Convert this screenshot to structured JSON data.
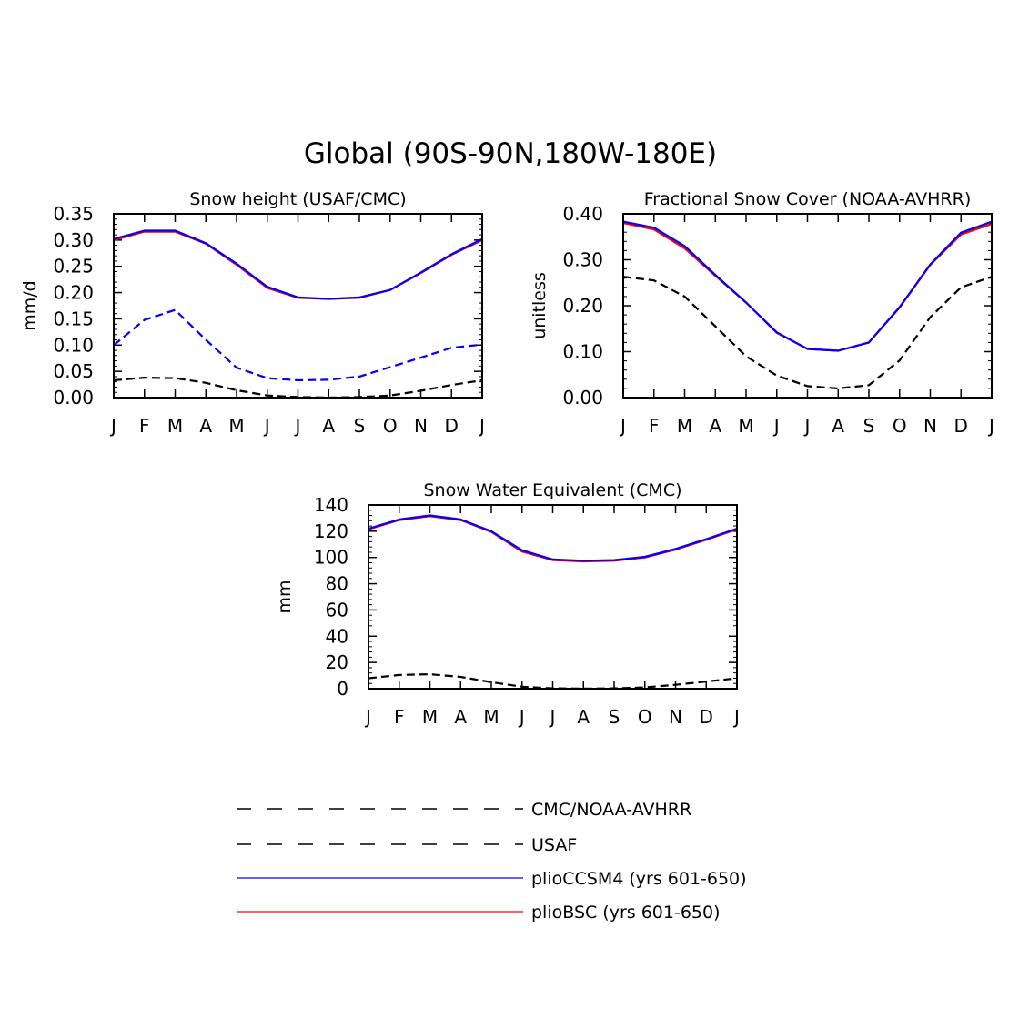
{
  "figure": {
    "title": "Global (90S-90N,180W-180E)"
  },
  "legend": {
    "entries": [
      {
        "label": "CMC/NOAA-AVHRR",
        "color": "#000000",
        "style": "dashed-long"
      },
      {
        "label": "USAF",
        "color": "#000000",
        "style": "dashed-dark"
      },
      {
        "label": "plioCCSM4 (yrs 601-650)",
        "color": "#0000ff",
        "style": "solid"
      },
      {
        "label": "plioBSC (yrs 601-650)",
        "color": "#ff0000",
        "style": "solid"
      }
    ]
  },
  "chart_data": [
    {
      "type": "line",
      "title": "Snow height (USAF/CMC)",
      "xlabel": "",
      "ylabel": "mm/d",
      "categories": [
        "J",
        "F",
        "M",
        "A",
        "M",
        "J",
        "J",
        "A",
        "S",
        "O",
        "N",
        "D",
        "J"
      ],
      "ylim": [
        0,
        0.35
      ],
      "yticks": [
        "0.00",
        "0.05",
        "0.10",
        "0.15",
        "0.20",
        "0.25",
        "0.30",
        "0.35"
      ],
      "grid": false,
      "series": [
        {
          "name": "plioBSC (yrs 601-650)",
          "color": "#ff0000",
          "dash": "solid",
          "values": [
            0.3,
            0.316,
            0.316,
            0.293,
            0.253,
            0.209,
            0.19,
            0.188,
            0.19,
            0.205,
            0.237,
            0.272,
            0.3
          ]
        },
        {
          "name": "plioCCSM4 (yrs 601-650)",
          "color": "#0000ff",
          "dash": "solid",
          "values": [
            0.302,
            0.318,
            0.318,
            0.294,
            0.255,
            0.211,
            0.191,
            0.188,
            0.191,
            0.205,
            0.238,
            0.273,
            0.302
          ]
        },
        {
          "name": "USAF",
          "color": "#0000ff",
          "dash": "dashed",
          "values": [
            0.1,
            0.148,
            0.167,
            0.11,
            0.057,
            0.037,
            0.033,
            0.034,
            0.04,
            0.058,
            0.076,
            0.095,
            0.101
          ]
        },
        {
          "name": "CMC/NOAA-AVHRR",
          "color": "#000000",
          "dash": "dashed",
          "values": [
            0.033,
            0.038,
            0.037,
            0.028,
            0.014,
            0.004,
            0.001,
            0.0,
            0.001,
            0.004,
            0.013,
            0.024,
            0.033
          ]
        }
      ]
    },
    {
      "type": "line",
      "title": "Fractional Snow Cover (NOAA-AVHRR)",
      "xlabel": "",
      "ylabel": "unitless",
      "categories": [
        "J",
        "F",
        "M",
        "A",
        "M",
        "J",
        "J",
        "A",
        "S",
        "O",
        "N",
        "D",
        "J"
      ],
      "ylim": [
        0,
        0.4
      ],
      "yticks": [
        "0.00",
        "0.10",
        "0.20",
        "0.30",
        "0.40"
      ],
      "grid": false,
      "series": [
        {
          "name": "plioBSC (yrs 601-650)",
          "color": "#ff0000",
          "dash": "solid",
          "values": [
            0.38,
            0.366,
            0.325,
            0.265,
            0.207,
            0.141,
            0.106,
            0.102,
            0.12,
            0.196,
            0.289,
            0.355,
            0.378
          ]
        },
        {
          "name": "plioCCSM4 (yrs 601-650)",
          "color": "#0000ff",
          "dash": "solid",
          "values": [
            0.383,
            0.37,
            0.33,
            0.267,
            0.207,
            0.142,
            0.106,
            0.102,
            0.12,
            0.197,
            0.29,
            0.359,
            0.383
          ]
        },
        {
          "name": "CMC/NOAA-AVHRR",
          "color": "#000000",
          "dash": "dashed",
          "values": [
            0.263,
            0.255,
            0.22,
            0.155,
            0.09,
            0.048,
            0.025,
            0.02,
            0.027,
            0.081,
            0.175,
            0.24,
            0.263
          ]
        }
      ]
    },
    {
      "type": "line",
      "title": "Snow Water Equivalent (CMC)",
      "xlabel": "",
      "ylabel": "mm",
      "categories": [
        "J",
        "F",
        "M",
        "A",
        "M",
        "J",
        "J",
        "A",
        "S",
        "O",
        "N",
        "D",
        "J"
      ],
      "ylim": [
        0,
        140
      ],
      "yticks": [
        "0",
        "20",
        "40",
        "60",
        "80",
        "100",
        "120",
        "140"
      ],
      "grid": false,
      "series": [
        {
          "name": "plioBSC (yrs 601-650)",
          "color": "#ff0000",
          "dash": "solid",
          "values": [
            121.5,
            128.5,
            131.5,
            128.5,
            119.5,
            104.5,
            98.0,
            97.0,
            97.5,
            100.0,
            106.0,
            113.5,
            121.5
          ]
        },
        {
          "name": "plioCCSM4 (yrs 601-650)",
          "color": "#0000ff",
          "dash": "solid",
          "values": [
            122.0,
            129.0,
            132.0,
            129.0,
            120.0,
            105.5,
            98.5,
            97.5,
            98.0,
            100.5,
            106.5,
            114.0,
            122.0
          ]
        },
        {
          "name": "CMC/NOAA-AVHRR",
          "color": "#000000",
          "dash": "dashed",
          "values": [
            8.0,
            10.5,
            11.0,
            9.0,
            5.0,
            1.5,
            0.3,
            0.1,
            0.3,
            1.0,
            3.0,
            5.5,
            8.0
          ]
        }
      ]
    }
  ]
}
